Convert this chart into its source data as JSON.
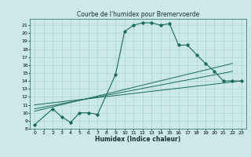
{
  "title": "Courbe de l'humidex pour Bremervoerde",
  "xlabel": "Humidex (Indice chaleur)",
  "bg_color": "#cce8e8",
  "line_color": "#1a6b5a",
  "grid_color": "#aad4d4",
  "xlim": [
    -0.5,
    23.5
  ],
  "ylim": [
    8,
    21.8
  ],
  "xticks": [
    0,
    1,
    2,
    3,
    4,
    5,
    6,
    7,
    8,
    9,
    10,
    11,
    12,
    13,
    14,
    15,
    16,
    17,
    18,
    19,
    20,
    21,
    22,
    23
  ],
  "yticks": [
    8,
    9,
    10,
    11,
    12,
    13,
    14,
    15,
    16,
    17,
    18,
    19,
    20,
    21
  ],
  "s1x": [
    0,
    2,
    3,
    4,
    5,
    6,
    7,
    9,
    10,
    11,
    12,
    13,
    14,
    15,
    16,
    17,
    18,
    19,
    20,
    21,
    22,
    23
  ],
  "s1y": [
    8.5,
    10.5,
    9.5,
    8.8,
    10.0,
    10.0,
    9.8,
    14.8,
    20.2,
    21.0,
    21.3,
    21.3,
    21.0,
    21.2,
    18.5,
    18.5,
    17.3,
    16.2,
    15.2,
    14.0,
    14.0,
    14.0
  ],
  "s2x": [
    0,
    22
  ],
  "s2y": [
    10.2,
    16.2
  ],
  "s3x": [
    0,
    22
  ],
  "s3y": [
    10.5,
    15.2
  ],
  "s4x": [
    0,
    23
  ],
  "s4y": [
    11.0,
    14.0
  ]
}
